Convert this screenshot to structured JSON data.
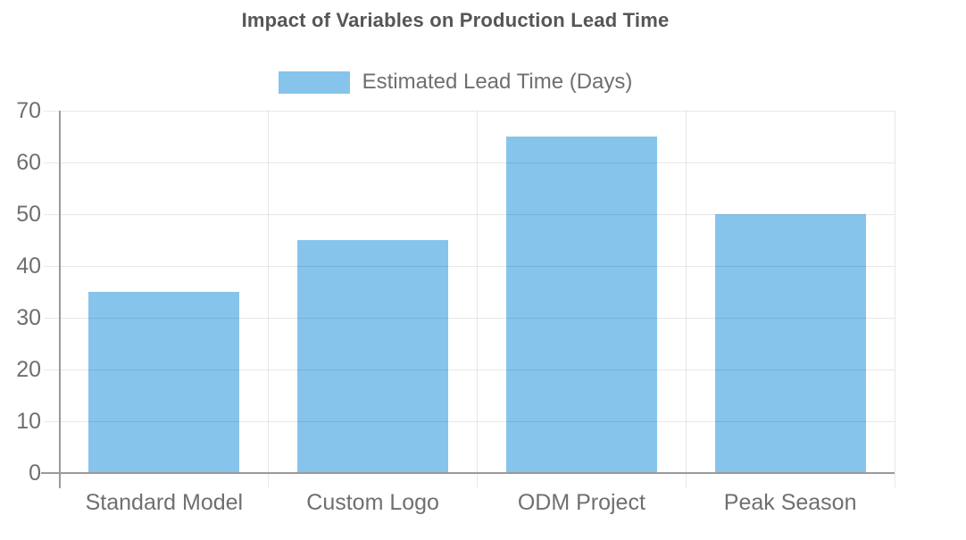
{
  "header": {
    "title": "Impact of Variables on Production Lead Time"
  },
  "legend": {
    "position": "top",
    "items": [
      {
        "label": "Estimated Lead Time (Days)",
        "color": "#86C4EC"
      }
    ]
  },
  "chart_data": {
    "type": "bar",
    "title": "Impact of Variables on Production Lead Time",
    "categories": [
      "Standard Model",
      "Custom Logo",
      "ODM Project",
      "Peak Season"
    ],
    "series": [
      {
        "name": "Estimated Lead Time (Days)",
        "values": [
          35,
          45,
          65,
          50
        ],
        "color": "#86C4EC"
      }
    ],
    "xlabel": "",
    "ylabel": "",
    "ylim": [
      0,
      70
    ],
    "yticks": [
      0,
      10,
      20,
      30,
      40,
      50,
      60,
      70
    ],
    "grid": true,
    "legend_position": "top",
    "colors": {
      "bar": "#86C4EC",
      "gridline": "rgba(0,0,0,0.09)",
      "axis": "#9a9a9a",
      "title_text": "#565656",
      "tick_text": "#6f6f6f",
      "legend_text": "#6f6f6f",
      "background": "#ffffff"
    }
  }
}
